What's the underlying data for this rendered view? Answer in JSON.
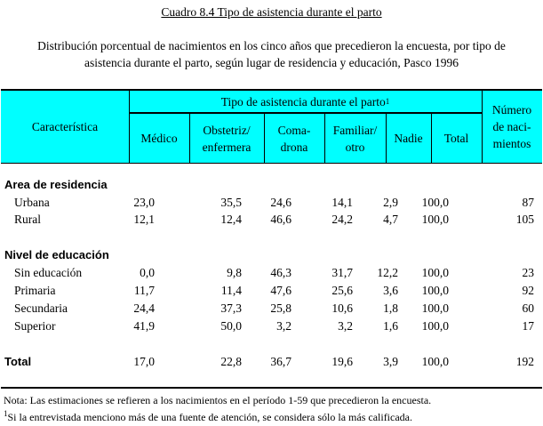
{
  "title": "Cuadro 8.4 Tipo de asistencia durante el parto",
  "subtitle_line1": "Distribución porcentual de nacimientos en los cinco años que precedieron la encuesta, por tipo de",
  "subtitle_line2": "asistencia durante el parto, según lugar de residencia y educación, Pasco 1996",
  "header": {
    "characteristic": "Característica",
    "group": "Tipo de asistencia durante el parto",
    "group_sup": "1",
    "cols": [
      [
        "Médico"
      ],
      [
        "Obstetriz/",
        "enfermera"
      ],
      [
        "Coma-",
        "drona"
      ],
      [
        "Familiar/",
        "otro"
      ],
      [
        "Nadie"
      ],
      [
        "Total"
      ]
    ],
    "births": [
      "Número",
      "de naci-",
      "mientos"
    ]
  },
  "rows": [
    {
      "type": "section",
      "label": "Area de residencia"
    },
    {
      "label": "Urbana",
      "values": [
        "23,0",
        "35,5",
        "24,6",
        "14,1",
        "2,9",
        "100,0",
        "87"
      ]
    },
    {
      "label": "Rural",
      "values": [
        "12,1",
        "12,4",
        "46,6",
        "24,2",
        "4,7",
        "100,0",
        "105"
      ]
    },
    {
      "type": "section",
      "label": "Nivel de educación"
    },
    {
      "label": "Sin educación",
      "values": [
        "0,0",
        "9,8",
        "46,3",
        "31,7",
        "12,2",
        "100,0",
        "23"
      ]
    },
    {
      "label": "Primaria",
      "values": [
        "11,7",
        "11,4",
        "47,6",
        "25,6",
        "3,6",
        "100,0",
        "92"
      ]
    },
    {
      "label": "Secundaria",
      "values": [
        "24,4",
        "37,3",
        "25,8",
        "10,6",
        "1,8",
        "100,0",
        "60"
      ]
    },
    {
      "label": "Superior",
      "values": [
        "41,9",
        "50,0",
        "3,2",
        "3,2",
        "1,6",
        "100,0",
        "17"
      ]
    },
    {
      "type": "total",
      "label": "Total",
      "values": [
        "17,0",
        "22,8",
        "36,7",
        "19,6",
        "3,9",
        "100,0",
        "192"
      ]
    }
  ],
  "notes": {
    "note": "Nota: Las estimaciones se refieren a los nacimientos en el período 1-59 que precedieron la encuesta.",
    "footnote_mark": "1",
    "footnote": "Si la entrevistada menciono más de una fuente de atención, se considera sólo la más calificada."
  }
}
